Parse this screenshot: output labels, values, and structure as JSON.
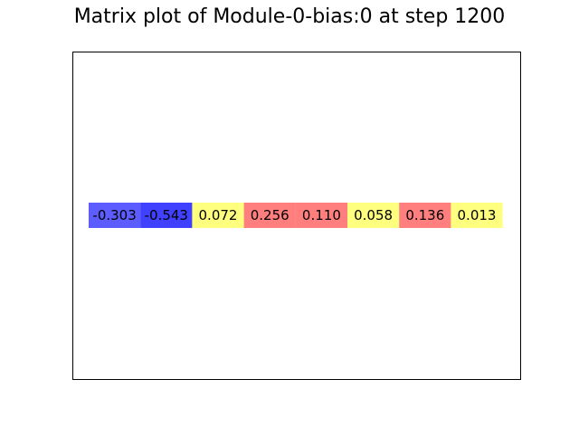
{
  "chart_data": {
    "type": "heatmap",
    "title": "Matrix plot of Module-0-bias:0 at step 1200",
    "rows": 1,
    "columns": 8,
    "values": [
      -0.303,
      -0.543,
      0.072,
      0.256,
      0.11,
      0.058,
      0.136,
      0.013
    ],
    "labels": [
      "-0.303",
      "-0.543",
      "0.072",
      "0.256",
      "0.110",
      "0.058",
      "0.136",
      "0.013"
    ],
    "color_rule": {
      "negative": "#0000ff",
      "small_positive": "#ffff00",
      "large_positive": "#ff0000",
      "threshold": 0.1
    },
    "axes_visible": false,
    "grid": false,
    "legend": "none"
  }
}
